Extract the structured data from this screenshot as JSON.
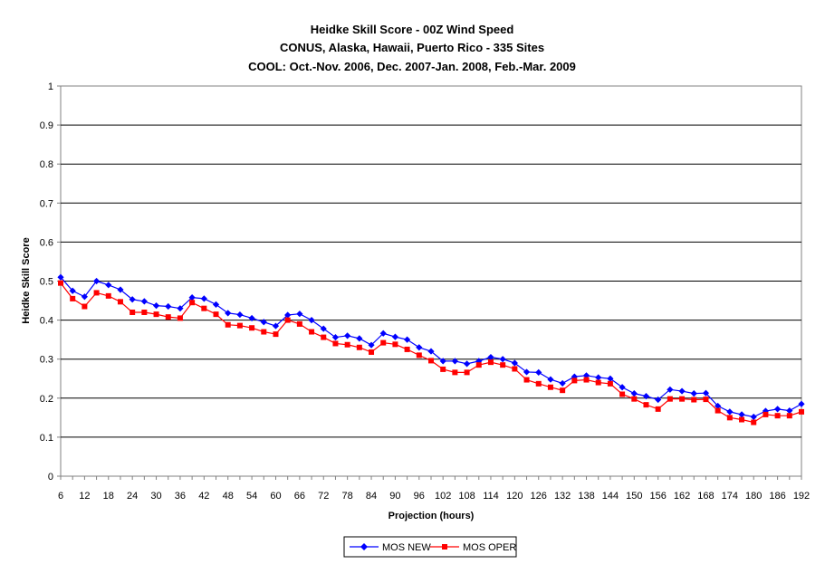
{
  "chart_data": {
    "type": "line",
    "title_lines": [
      "Heidke Skill Score - 00Z Wind Speed",
      "CONUS, Alaska, Hawaii, Puerto Rico - 335 Sites",
      "COOL: Oct.-Nov. 2006, Dec. 2007-Jan. 2008, Feb.-Mar. 2009"
    ],
    "xlabel": "Projection (hours)",
    "ylabel": "Heidke Skill Score",
    "ylim": [
      0,
      1
    ],
    "yticks": [
      "0",
      "0.1",
      "0.2",
      "0.3",
      "0.4",
      "0.5",
      "0.6",
      "0.7",
      "0.8",
      "0.9",
      "1"
    ],
    "xtick_labels": [
      "6",
      "12",
      "18",
      "24",
      "30",
      "36",
      "42",
      "48",
      "54",
      "60",
      "66",
      "72",
      "78",
      "84",
      "90",
      "96",
      "102",
      "108",
      "114",
      "120",
      "126",
      "132",
      "138",
      "144",
      "150",
      "156",
      "162",
      "168",
      "174",
      "180",
      "186",
      "192"
    ],
    "grid": "horizontal",
    "legend_position": "bottom",
    "x": [
      6,
      9,
      12,
      15,
      18,
      21,
      24,
      27,
      30,
      33,
      36,
      39,
      42,
      45,
      48,
      51,
      54,
      57,
      60,
      63,
      66,
      69,
      72,
      75,
      78,
      81,
      84,
      87,
      90,
      93,
      96,
      99,
      102,
      105,
      108,
      111,
      114,
      117,
      120,
      123,
      126,
      129,
      132,
      135,
      138,
      141,
      144,
      147,
      150,
      153,
      156,
      159,
      162,
      165,
      168,
      171,
      174,
      177,
      180,
      183,
      186,
      189,
      192
    ],
    "series": [
      {
        "name": "MOS NEW",
        "color": "#0000ff",
        "marker": "diamond",
        "values": [
          0.51,
          0.475,
          0.46,
          0.5,
          0.49,
          0.478,
          0.453,
          0.448,
          0.437,
          0.435,
          0.43,
          0.458,
          0.455,
          0.44,
          0.418,
          0.414,
          0.405,
          0.395,
          0.385,
          0.413,
          0.416,
          0.4,
          0.378,
          0.356,
          0.36,
          0.353,
          0.336,
          0.366,
          0.357,
          0.35,
          0.33,
          0.32,
          0.295,
          0.295,
          0.288,
          0.295,
          0.305,
          0.3,
          0.29,
          0.267,
          0.266,
          0.248,
          0.238,
          0.255,
          0.258,
          0.253,
          0.25,
          0.228,
          0.212,
          0.205,
          0.196,
          0.222,
          0.218,
          0.212,
          0.213,
          0.18,
          0.165,
          0.158,
          0.152,
          0.167,
          0.172,
          0.168,
          0.185
        ]
      },
      {
        "name": "MOS OPER",
        "color": "#ff0000",
        "marker": "square",
        "values": [
          0.495,
          0.455,
          0.435,
          0.47,
          0.462,
          0.447,
          0.42,
          0.42,
          0.415,
          0.408,
          0.405,
          0.445,
          0.43,
          0.415,
          0.388,
          0.386,
          0.38,
          0.37,
          0.364,
          0.4,
          0.39,
          0.37,
          0.356,
          0.34,
          0.337,
          0.33,
          0.318,
          0.342,
          0.338,
          0.325,
          0.31,
          0.296,
          0.274,
          0.266,
          0.266,
          0.285,
          0.292,
          0.285,
          0.275,
          0.247,
          0.237,
          0.228,
          0.22,
          0.245,
          0.247,
          0.24,
          0.237,
          0.21,
          0.198,
          0.183,
          0.172,
          0.198,
          0.198,
          0.196,
          0.197,
          0.168,
          0.15,
          0.145,
          0.138,
          0.158,
          0.155,
          0.155,
          0.165
        ]
      }
    ]
  }
}
